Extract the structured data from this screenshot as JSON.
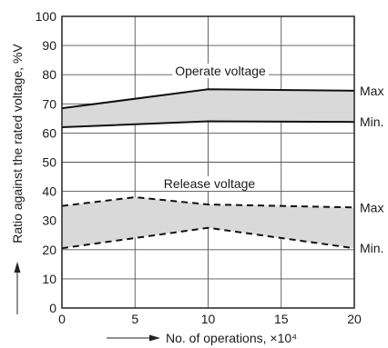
{
  "chart_data": {
    "type": "line",
    "xlabel": "No. of operations, ×10⁴",
    "ylabel": "Ratio against the rated voltage, %V",
    "xlim": [
      0,
      20
    ],
    "ylim": [
      0,
      100
    ],
    "xticks": [
      0,
      5,
      10,
      15,
      20
    ],
    "yticks": [
      0,
      10,
      20,
      30,
      40,
      50,
      60,
      70,
      80,
      90,
      100
    ],
    "grid": true,
    "bands": [
      {
        "label": "Operate voltage",
        "line_style": "solid",
        "fill": "#d9d9d9",
        "upper": {
          "name": "Max",
          "x": [
            0,
            10,
            20
          ],
          "y": [
            68.5,
            75,
            74.5
          ]
        },
        "lower": {
          "name": "Min.",
          "x": [
            0,
            10,
            20
          ],
          "y": [
            62,
            64,
            63.8
          ]
        }
      },
      {
        "label": "Release voltage",
        "line_style": "dashed",
        "fill": "#d9d9d9",
        "upper": {
          "name": "Max",
          "x": [
            0,
            5,
            10,
            20
          ],
          "y": [
            35,
            38,
            35.5,
            34.5
          ]
        },
        "lower": {
          "name": "Min.",
          "x": [
            0,
            10,
            20
          ],
          "y": [
            20.5,
            27.5,
            20.5
          ]
        }
      }
    ]
  }
}
